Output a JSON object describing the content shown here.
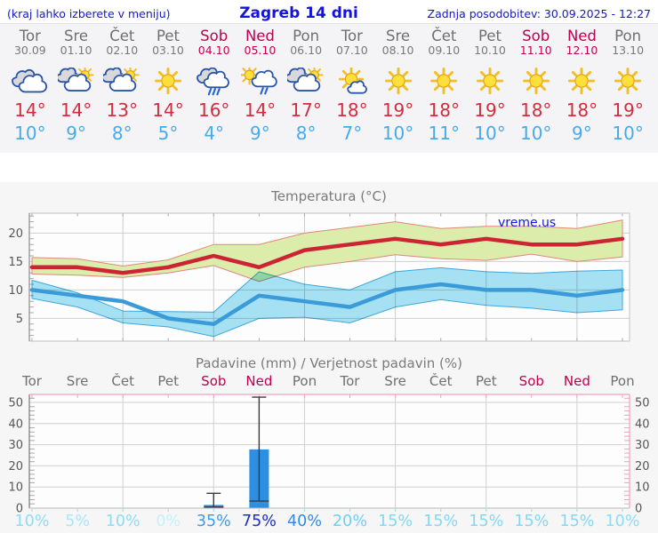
{
  "header": {
    "left_note": "(kraj lahko izberete v meniju)",
    "title": "Zagreb 14 dni",
    "updated": "Zadnja posodobitev: 30.09.2025 - 12:27"
  },
  "colors": {
    "link_blue": "#1414dd",
    "weekend": "#c0004e",
    "day_gray": "#6f6f6f",
    "high_red": "#d32c3e",
    "low_blue": "#45abec",
    "strip_bg": "#f4f4f6",
    "charts_bg": "#f6f6f7",
    "pink_axis": "#f2a0bb"
  },
  "forecast": {
    "days": [
      {
        "name": "Tor",
        "date": "30.09",
        "icon": "cloudy",
        "high": 14,
        "low": 10,
        "weekend": false
      },
      {
        "name": "Sre",
        "date": "01.10",
        "icon": "partly-cloudy",
        "high": 14,
        "low": 9,
        "weekend": false
      },
      {
        "name": "Čet",
        "date": "02.10",
        "icon": "partly-cloudy",
        "high": 13,
        "low": 8,
        "weekend": false
      },
      {
        "name": "Pet",
        "date": "03.10",
        "icon": "sunny",
        "high": 14,
        "low": 5,
        "weekend": false
      },
      {
        "name": "Sob",
        "date": "04.10",
        "icon": "rain",
        "high": 16,
        "low": 4,
        "weekend": true
      },
      {
        "name": "Ned",
        "date": "05.10",
        "icon": "sun-rain",
        "high": 14,
        "low": 9,
        "weekend": true
      },
      {
        "name": "Pon",
        "date": "06.10",
        "icon": "partly-cloudy",
        "high": 17,
        "low": 8,
        "weekend": false
      },
      {
        "name": "Tor",
        "date": "07.10",
        "icon": "mostly-sunny",
        "high": 18,
        "low": 7,
        "weekend": false
      },
      {
        "name": "Sre",
        "date": "08.10",
        "icon": "sunny",
        "high": 19,
        "low": 10,
        "weekend": false
      },
      {
        "name": "Čet",
        "date": "09.10",
        "icon": "sunny",
        "high": 18,
        "low": 11,
        "weekend": false
      },
      {
        "name": "Pet",
        "date": "10.10",
        "icon": "sunny",
        "high": 19,
        "low": 10,
        "weekend": false
      },
      {
        "name": "Sob",
        "date": "11.10",
        "icon": "sunny",
        "high": 18,
        "low": 10,
        "weekend": true
      },
      {
        "name": "Ned",
        "date": "12.10",
        "icon": "sunny",
        "high": 18,
        "low": 9,
        "weekend": true
      },
      {
        "name": "Pon",
        "date": "13.10",
        "icon": "sunny",
        "high": 19,
        "low": 10,
        "weekend": false
      }
    ]
  },
  "chart_data": [
    {
      "type": "line",
      "title": "Temperatura (°C)",
      "watermark": "vreme.us",
      "x_days": [
        "Tor",
        "Sre",
        "Čet",
        "Pet",
        "Sob",
        "Ned",
        "Pon",
        "Tor",
        "Sre",
        "Čet",
        "Pet",
        "Sob",
        "Ned",
        "Pon"
      ],
      "ylim": [
        1,
        23.5
      ],
      "yticks": [
        5,
        10,
        15,
        20
      ],
      "grid_day_idx": [
        2,
        4,
        6,
        8,
        10,
        12
      ],
      "series": [
        {
          "name": "max temperatura",
          "color": "#cc2433",
          "values": [
            14,
            14,
            13,
            14,
            16,
            14,
            17,
            18,
            19,
            18,
            19,
            18,
            18,
            19
          ]
        },
        {
          "name": "min temperatura",
          "color": "#3b9bd9",
          "values": [
            10,
            9,
            8,
            5,
            4,
            9,
            8,
            7,
            10,
            11,
            10,
            10,
            9,
            10
          ]
        }
      ],
      "bands": [
        {
          "name": "max razpon",
          "fill": "#dcecaa",
          "edge": "#dd8878",
          "upper": [
            15.7,
            15.5,
            14.2,
            15.3,
            18,
            18,
            20,
            21,
            22,
            20.8,
            21.2,
            21.2,
            20.8,
            22.3
          ],
          "lower": [
            12.8,
            12.6,
            12.2,
            13,
            14.3,
            11.5,
            14,
            15,
            16.2,
            15.5,
            15.2,
            16.3,
            15,
            15.8
          ]
        },
        {
          "name": "min razpon",
          "fill": "#a6e3f4",
          "edge": "#3fa8dc",
          "upper": [
            11.7,
            9.5,
            6.3,
            6.2,
            6.1,
            13.2,
            11,
            10,
            13.2,
            13.9,
            13.2,
            12.9,
            13.3,
            13.5
          ],
          "lower": [
            8.5,
            7,
            4.2,
            3.5,
            1.8,
            5,
            5.2,
            4.2,
            7,
            8.3,
            7.3,
            6.8,
            6,
            6.5
          ]
        }
      ]
    },
    {
      "type": "bar",
      "title": "Padavine (mm) / Verjetnost padavin (%)",
      "categories": [
        "Tor",
        "Sre",
        "Čet",
        "Pet",
        "Sob",
        "Ned",
        "Pon",
        "Tor",
        "Sre",
        "Čet",
        "Pet",
        "Sob",
        "Ned",
        "Pon"
      ],
      "weekend_idx": [
        4,
        5,
        11,
        12
      ],
      "ylim": [
        0,
        53.8
      ],
      "yticks": [
        0,
        10,
        20,
        30,
        40,
        50
      ],
      "grid_day_idx": [
        2,
        4,
        6,
        8,
        10,
        12
      ],
      "bar_color": "#2d8fe2",
      "values": [
        0,
        0,
        0,
        0,
        1.5,
        27.8,
        0,
        0,
        0,
        0,
        0,
        0,
        0,
        0
      ],
      "whisker_lo": [
        null,
        null,
        null,
        null,
        0.5,
        3.3,
        null,
        null,
        null,
        null,
        null,
        null,
        null,
        null
      ],
      "whisker_hi": [
        null,
        null,
        null,
        null,
        7,
        52.5,
        null,
        null,
        null,
        null,
        null,
        null,
        null,
        null
      ],
      "probabilities": [
        "10%",
        "5%",
        "10%",
        "0%",
        "35%",
        "75%",
        "40%",
        "20%",
        "15%",
        "15%",
        "15%",
        "15%",
        "15%",
        "10%"
      ],
      "prob_colors": [
        "#8edcf3",
        "#a9e6f7",
        "#8edcf3",
        "#c4f0fa",
        "#3b9ce8",
        "#1b2ec6",
        "#2e8ee4",
        "#6fd0ee",
        "#84d8f1",
        "#84d8f1",
        "#84d8f1",
        "#84d8f1",
        "#84d8f1",
        "#8edcf3"
      ]
    }
  ]
}
